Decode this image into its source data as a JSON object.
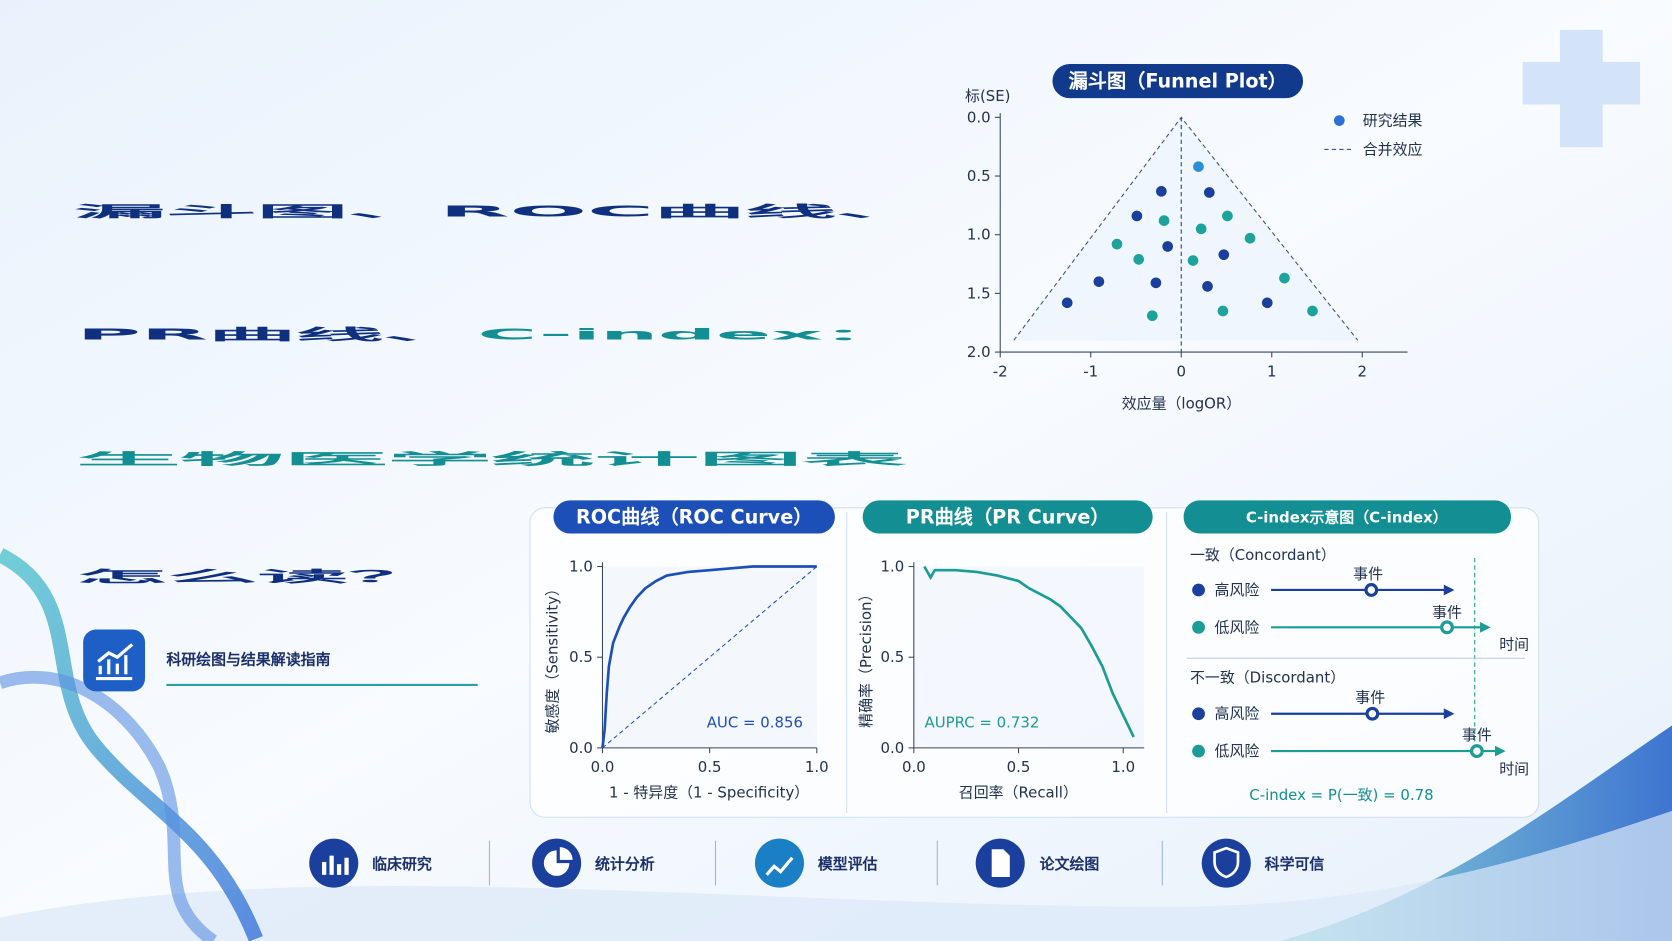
{
  "header": {
    "title_lines": [
      "漏斗图、ROC曲线、",
      "PR曲线、",
      "C-index：",
      "生物医学统计图表",
      "怎么读？"
    ],
    "subtitle": "科研绘图与结果解读指南"
  },
  "chart_data": [
    {
      "type": "scatter",
      "title": "漏斗图（Funnel Plot）",
      "x_label": "效应量（logOR）",
      "y_label": "标(SE)",
      "xlim": [
        -2.0,
        2.5
      ],
      "xticks": [
        -2,
        -1,
        0,
        1,
        2
      ],
      "ylim": [
        0,
        2
      ],
      "y_inverted": true,
      "yticks": [
        {
          "value": 0,
          "label": "0.0"
        },
        {
          "value": 0.5,
          "label": "0.5"
        },
        {
          "value": 1,
          "label": "1.0"
        },
        {
          "value": 1.5,
          "label": "1.5"
        },
        {
          "value": 2,
          "label": "2.0"
        }
      ],
      "series": [
        {
          "name": "研究结果",
          "color": "#2c6fd6",
          "x": [
            0.19,
            -0.22,
            0.31,
            -0.49,
            -0.19,
            0.51,
            0.22,
            0.76,
            -0.71,
            -0.47,
            -0.15,
            0.13,
            0.47,
            -0.91,
            -0.28,
            0.29,
            1.14,
            -1.26,
            -0.32,
            0.46,
            0.95,
            1.45
          ],
          "values": [
            0.42,
            0.63,
            0.64,
            0.84,
            0.88,
            0.84,
            0.95,
            1.03,
            1.08,
            1.21,
            1.1,
            1.22,
            1.17,
            1.4,
            1.41,
            1.44,
            1.37,
            1.58,
            1.69,
            1.65,
            1.58,
            1.65
          ],
          "point_colors": [
            "#2c8fd6",
            "#1a3f9c",
            "#1a3f9c",
            "#1a3f9c",
            "#1ba39c",
            "#1ba39c",
            "#1ba39c",
            "#1ba39c",
            "#1ba39c",
            "#1ba39c",
            "#1a3f9c",
            "#1ba39c",
            "#1a3f9c",
            "#1a3f9c",
            "#1a3f9c",
            "#1a3f9c",
            "#1ba39c",
            "#1a3f9c",
            "#1ba39c",
            "#1ba39c",
            "#1a3f9c",
            "#1ba39c"
          ]
        }
      ],
      "pooled_effect": {
        "name": "合并效应",
        "x": 0,
        "color": "#1a3f9c"
      },
      "funnel_limits": {
        "x": [
          -1.85,
          0,
          1.95
        ],
        "y": [
          1.9,
          0,
          1.9
        ],
        "color": "#3a4f7a"
      }
    },
    {
      "type": "line",
      "title": "ROC曲线（ROC Curve）",
      "x_label": "1 - 特异度（1 - Specificity）",
      "y_label": "敏感度（Sensitivity）",
      "annotation": "AUC = 0.856",
      "xlim": [
        0,
        1
      ],
      "ylim": [
        0,
        1
      ],
      "xticks": [
        {
          "value": 0,
          "label": "0.0"
        },
        {
          "value": 0.5,
          "label": "0.5"
        },
        {
          "value": 1,
          "label": "1.0"
        }
      ],
      "yticks": [
        {
          "value": 0,
          "label": "0.0"
        },
        {
          "value": 0.5,
          "label": "0.5"
        },
        {
          "value": 1,
          "label": "1.0"
        }
      ],
      "series": [
        {
          "color": "#1d4fb8",
          "x": [
            0,
            0.01,
            0.02,
            0.03,
            0.05,
            0.08,
            0.1,
            0.13,
            0.16,
            0.2,
            0.25,
            0.3,
            0.4,
            0.5,
            0.6,
            0.7,
            0.8,
            0.9,
            1.0
          ],
          "values": [
            0,
            0.1,
            0.3,
            0.45,
            0.58,
            0.67,
            0.72,
            0.78,
            0.83,
            0.88,
            0.92,
            0.95,
            0.97,
            0.98,
            0.99,
            1.0,
            1.0,
            1.0,
            1.0
          ]
        },
        {
          "color": "#1d4fb8",
          "dashed": true,
          "x": [
            0,
            1
          ],
          "values": [
            0,
            1
          ]
        }
      ]
    },
    {
      "type": "line",
      "title": "PR曲线（PR Curve）",
      "x_label": "召回率（Recall）",
      "y_label": "精确率（Precision）",
      "annotation": "AUPRC = 0.732",
      "xlim": [
        0,
        1.1
      ],
      "ylim": [
        0,
        1
      ],
      "xticks": [
        {
          "value": 0,
          "label": "0.0"
        },
        {
          "value": 0.5,
          "label": "0.5"
        },
        {
          "value": 1,
          "label": "1.0"
        }
      ],
      "yticks": [
        {
          "value": 0,
          "label": "0.0"
        },
        {
          "value": 0.5,
          "label": "0.5"
        },
        {
          "value": 1,
          "label": "1.0"
        }
      ],
      "series": [
        {
          "color": "#1b9c96",
          "x": [
            0.05,
            0.08,
            0.1,
            0.2,
            0.3,
            0.4,
            0.5,
            0.55,
            0.6,
            0.65,
            0.7,
            0.75,
            0.8,
            0.85,
            0.9,
            0.95,
            1.0,
            1.05
          ],
          "values": [
            1.0,
            0.94,
            0.98,
            0.98,
            0.97,
            0.95,
            0.92,
            0.88,
            0.85,
            0.82,
            0.78,
            0.72,
            0.66,
            0.56,
            0.45,
            0.3,
            0.18,
            0.06
          ]
        }
      ]
    }
  ],
  "cindex": {
    "title": "C-index示意图（C-index）",
    "concordant": "一致（Concordant）",
    "discordant": "不一致（Discordant）",
    "high_risk": "高风险",
    "low_risk": "低风险",
    "event": "事件",
    "time": "时间",
    "formula": "C-index = P(一致) = 0.78"
  },
  "footer": {
    "items": [
      "临床研究",
      "统计分析",
      "模型评估",
      "论文绘图",
      "科学可信"
    ]
  }
}
